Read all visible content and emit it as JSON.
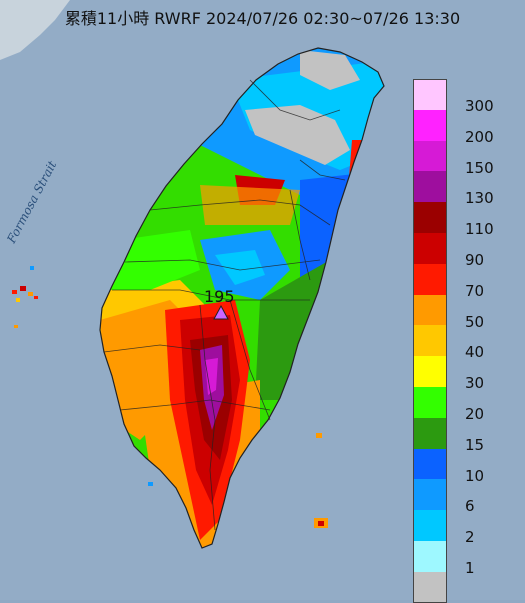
{
  "title": "累積11小時 RWRF 2024/07/26 02:30~07/26 13:30",
  "strait_label": "Formosa Strait",
  "peak": {
    "value": "195",
    "marker_color": "#cc66ff"
  },
  "legend": [
    {
      "label": "300",
      "color": "#ffc6ff"
    },
    {
      "label": "200",
      "color": "#ff22ff"
    },
    {
      "label": "150",
      "color": "#d61ad6"
    },
    {
      "label": "130",
      "color": "#9e0e9e"
    },
    {
      "label": "110",
      "color": "#9b0000"
    },
    {
      "label": "90",
      "color": "#cc0000"
    },
    {
      "label": "70",
      "color": "#ff1a00"
    },
    {
      "label": "50",
      "color": "#ff9a00"
    },
    {
      "label": "40",
      "color": "#ffc800"
    },
    {
      "label": "30",
      "color": "#ffff00"
    },
    {
      "label": "20",
      "color": "#33ff00"
    },
    {
      "label": "15",
      "color": "#2c9a10"
    },
    {
      "label": "10",
      "color": "#0b62ff"
    },
    {
      "label": "6",
      "color": "#0f9aff"
    },
    {
      "label": "2",
      "color": "#00c8ff"
    },
    {
      "label": "1",
      "color": "#9ef8ff"
    },
    {
      "label": "",
      "color": "#c2c2c2"
    }
  ],
  "colors": {
    "sea": "#8fa9c4",
    "land_outline": "#222222"
  }
}
